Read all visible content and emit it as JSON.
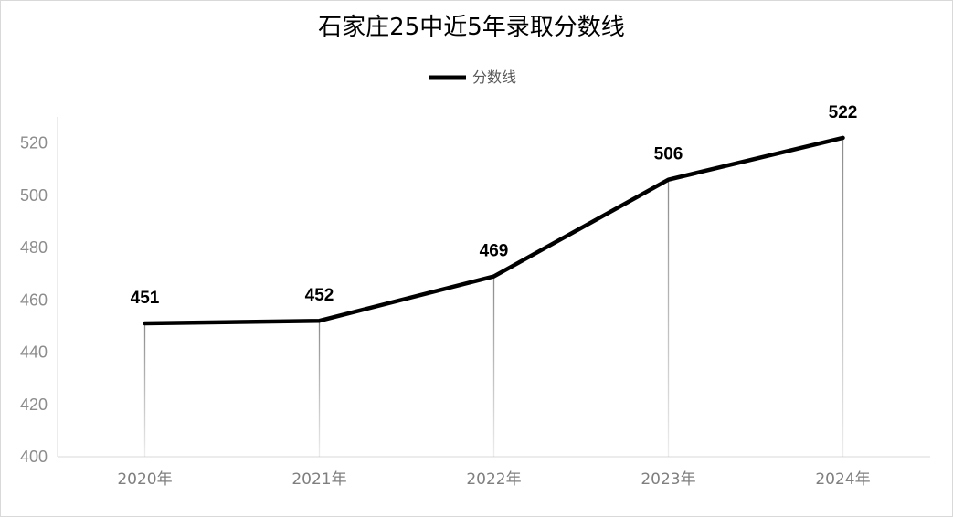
{
  "chart_data": {
    "type": "line",
    "title": "石家庄25中近5年录取分数线",
    "categories": [
      "2020年",
      "2021年",
      "2022年",
      "2023年",
      "2024年"
    ],
    "series": [
      {
        "name": "分数线",
        "values": [
          451,
          452,
          469,
          506,
          522
        ]
      }
    ],
    "data_labels": [
      "451",
      "452",
      "469",
      "506",
      "522"
    ],
    "y_ticks": [
      "400",
      "420",
      "440",
      "460",
      "480",
      "500",
      "520"
    ],
    "ylim": [
      400,
      530
    ],
    "grid": false,
    "drop_lines": true,
    "legend_position": "top-center",
    "colors": {
      "line": "#000000",
      "axis": "#d9d9d9",
      "tick_text": "#8c8c8c"
    }
  }
}
